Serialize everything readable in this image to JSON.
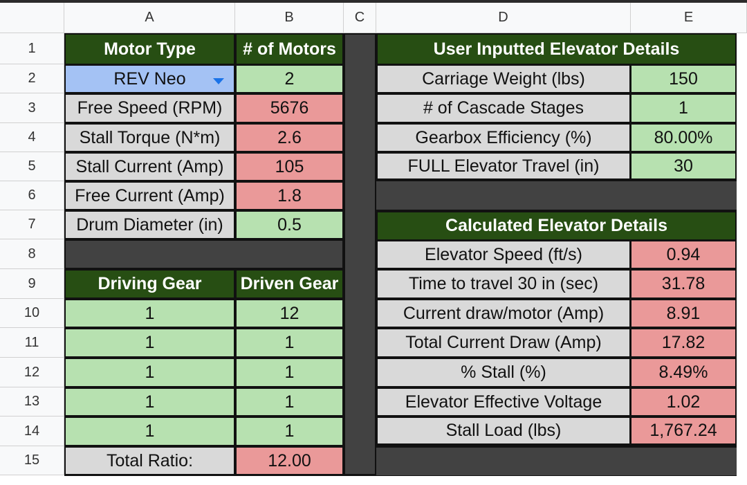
{
  "columns": [
    "A",
    "B",
    "C",
    "D",
    "E"
  ],
  "rows": [
    "1",
    "2",
    "3",
    "4",
    "5",
    "6",
    "7",
    "8",
    "9",
    "10",
    "11",
    "12",
    "13",
    "14",
    "15"
  ],
  "motor": {
    "header_type": "Motor Type",
    "header_count": "# of Motors",
    "type_value": "REV Neo",
    "count_value": "2",
    "specs": [
      {
        "label": "Free Speed (RPM)",
        "value": "5676"
      },
      {
        "label": "Stall Torque (N*m)",
        "value": "2.6"
      },
      {
        "label": "Stall Current (Amp)",
        "value": "105"
      },
      {
        "label": "Free Current (Amp)",
        "value": "1.8"
      },
      {
        "label": "Drum Diameter (in)",
        "value": "0.5"
      }
    ]
  },
  "gears": {
    "header_driving": "Driving Gear",
    "header_driven": "Driven Gear",
    "rows": [
      {
        "driving": "1",
        "driven": "12"
      },
      {
        "driving": "1",
        "driven": "1"
      },
      {
        "driving": "1",
        "driven": "1"
      },
      {
        "driving": "1",
        "driven": "1"
      },
      {
        "driving": "1",
        "driven": "1"
      }
    ],
    "total_label": "Total Ratio:",
    "total_value": "12.00"
  },
  "user_inputs": {
    "title": "User Inputted Elevator Details",
    "rows": [
      {
        "label": "Carriage Weight (lbs)",
        "value": "150"
      },
      {
        "label": "# of Cascade Stages",
        "value": "1"
      },
      {
        "label": "Gearbox Efficiency (%)",
        "value": "80.00%"
      },
      {
        "label": "FULL Elevator Travel (in)",
        "value": "30"
      }
    ]
  },
  "calculated": {
    "title": "Calculated Elevator Details",
    "rows": [
      {
        "label": "Elevator Speed (ft/s)",
        "value": "0.94"
      },
      {
        "label": "Time to travel 30 in (sec)",
        "value": "31.78"
      },
      {
        "label": "Current draw/motor (Amp)",
        "value": "8.91"
      },
      {
        "label": "Total Current Draw (Amp)",
        "value": "17.82"
      },
      {
        "label": "% Stall (%)",
        "value": "8.49%"
      },
      {
        "label": "Elevator Effective Voltage",
        "value": "1.02"
      },
      {
        "label": "Stall Load (lbs)",
        "value": "1,767.24"
      }
    ]
  },
  "colors": {
    "title_bg": "#274e13",
    "input_green": "#b7e1b0",
    "output_red": "#ea9999",
    "label_gray": "#d9d9d9",
    "dropdown_blue": "#a4c2f4",
    "separator_dark": "#424242"
  },
  "icons": {
    "dropdown": "chevron-down-icon"
  }
}
